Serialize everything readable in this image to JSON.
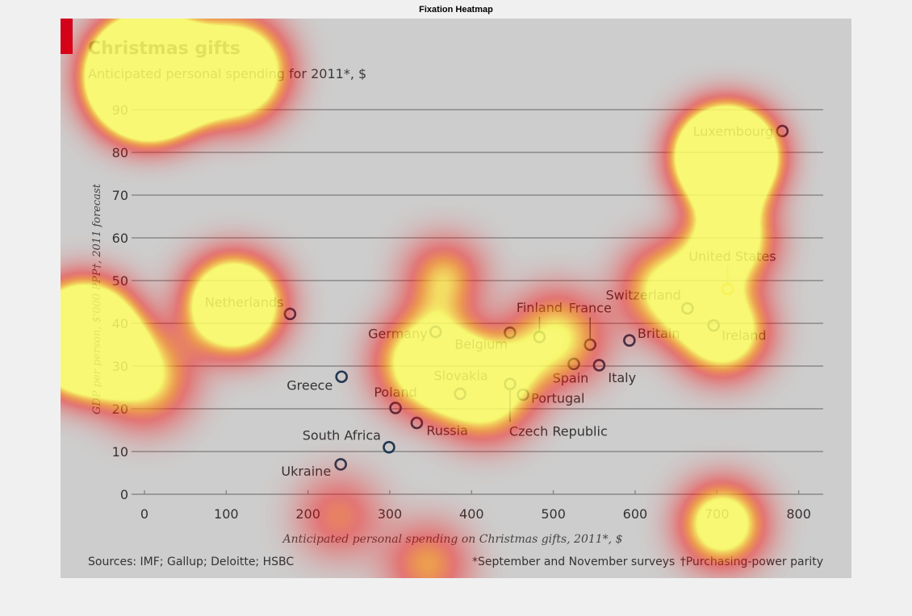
{
  "figure": {
    "title": "Fixation Heatmap"
  },
  "chart_data": {
    "type": "scatter",
    "title": "Christmas gifts",
    "subtitle": "Anticipated personal spending for 2011*, $",
    "xlabel": "Anticipated personal spending on Christmas gifts, 2011*, $",
    "ylabel": "GDP per person, $'000 PPP†, 2011 forecast",
    "xlim": [
      0,
      830
    ],
    "ylim": [
      0,
      90
    ],
    "xticks": [
      "0",
      "100",
      "200",
      "300",
      "400",
      "500",
      "600",
      "700",
      "800"
    ],
    "yticks": [
      "0",
      "10",
      "20",
      "30",
      "40",
      "50",
      "60",
      "70",
      "80",
      "90"
    ],
    "grid": true,
    "points": [
      {
        "name": "Luxembourg",
        "x": 780,
        "y": 85
      },
      {
        "name": "United States",
        "x": 713,
        "y": 48
      },
      {
        "name": "Switzerland",
        "x": 664,
        "y": 43.5
      },
      {
        "name": "Ireland",
        "x": 696,
        "y": 39.5
      },
      {
        "name": "Britain",
        "x": 593,
        "y": 36
      },
      {
        "name": "France",
        "x": 545,
        "y": 35
      },
      {
        "name": "Finland",
        "x": 483,
        "y": 36.8
      },
      {
        "name": "Belgium",
        "x": 447,
        "y": 37.8
      },
      {
        "name": "Germany",
        "x": 356,
        "y": 38
      },
      {
        "name": "Netherlands",
        "x": 178,
        "y": 42.2
      },
      {
        "name": "Spain",
        "x": 525,
        "y": 30.5
      },
      {
        "name": "Italy",
        "x": 556,
        "y": 30.2
      },
      {
        "name": "Greece",
        "x": 241,
        "y": 27.5
      },
      {
        "name": "Slovakia",
        "x": 386,
        "y": 23.5
      },
      {
        "name": "Czech Republic",
        "x": 447,
        "y": 25.8
      },
      {
        "name": "Portugal",
        "x": 463,
        "y": 23.3
      },
      {
        "name": "Poland",
        "x": 307,
        "y": 20.2
      },
      {
        "name": "Russia",
        "x": 333,
        "y": 16.7
      },
      {
        "name": "South Africa",
        "x": 299,
        "y": 11
      },
      {
        "name": "Ukraine",
        "x": 240,
        "y": 7
      }
    ],
    "sources": "Sources: IMF; Gallup; Deloitte; HSBC",
    "note1": "*September and November surveys",
    "note2": "†Purchasing-power parity",
    "colors": {
      "point": "#1f3a52",
      "highlight": "#c8a800",
      "brand": "#d0021b",
      "grid": "#8a8a8a",
      "background": "#cdcdcd"
    }
  },
  "heatmap": {
    "fixations": [
      {
        "x": 185,
        "y": 95,
        "weight": 1.0,
        "spread": 70
      },
      {
        "x": 290,
        "y": 88,
        "weight": 0.6,
        "spread": 60
      },
      {
        "x": 900,
        "y": 195,
        "weight": 1.0,
        "spread": 55
      },
      {
        "x": 905,
        "y": 300,
        "weight": 0.6,
        "spread": 45
      },
      {
        "x": 895,
        "y": 410,
        "weight": 0.55,
        "spread": 50
      },
      {
        "x": 290,
        "y": 378,
        "weight": 0.65,
        "spread": 55
      },
      {
        "x": 105,
        "y": 420,
        "weight": 0.75,
        "spread": 65
      },
      {
        "x": 550,
        "y": 345,
        "weight": 0.4,
        "spread": 40
      },
      {
        "x": 530,
        "y": 450,
        "weight": 0.45,
        "spread": 60
      },
      {
        "x": 600,
        "y": 480,
        "weight": 0.45,
        "spread": 60
      },
      {
        "x": 690,
        "y": 420,
        "weight": 0.35,
        "spread": 55
      },
      {
        "x": 830,
        "y": 360,
        "weight": 0.4,
        "spread": 55
      },
      {
        "x": 895,
        "y": 650,
        "weight": 0.55,
        "spread": 45
      },
      {
        "x": 530,
        "y": 700,
        "weight": 0.3,
        "spread": 45
      },
      {
        "x": 420,
        "y": 640,
        "weight": 0.25,
        "spread": 45
      },
      {
        "x": 180,
        "y": 470,
        "weight": 0.35,
        "spread": 55
      }
    ]
  }
}
